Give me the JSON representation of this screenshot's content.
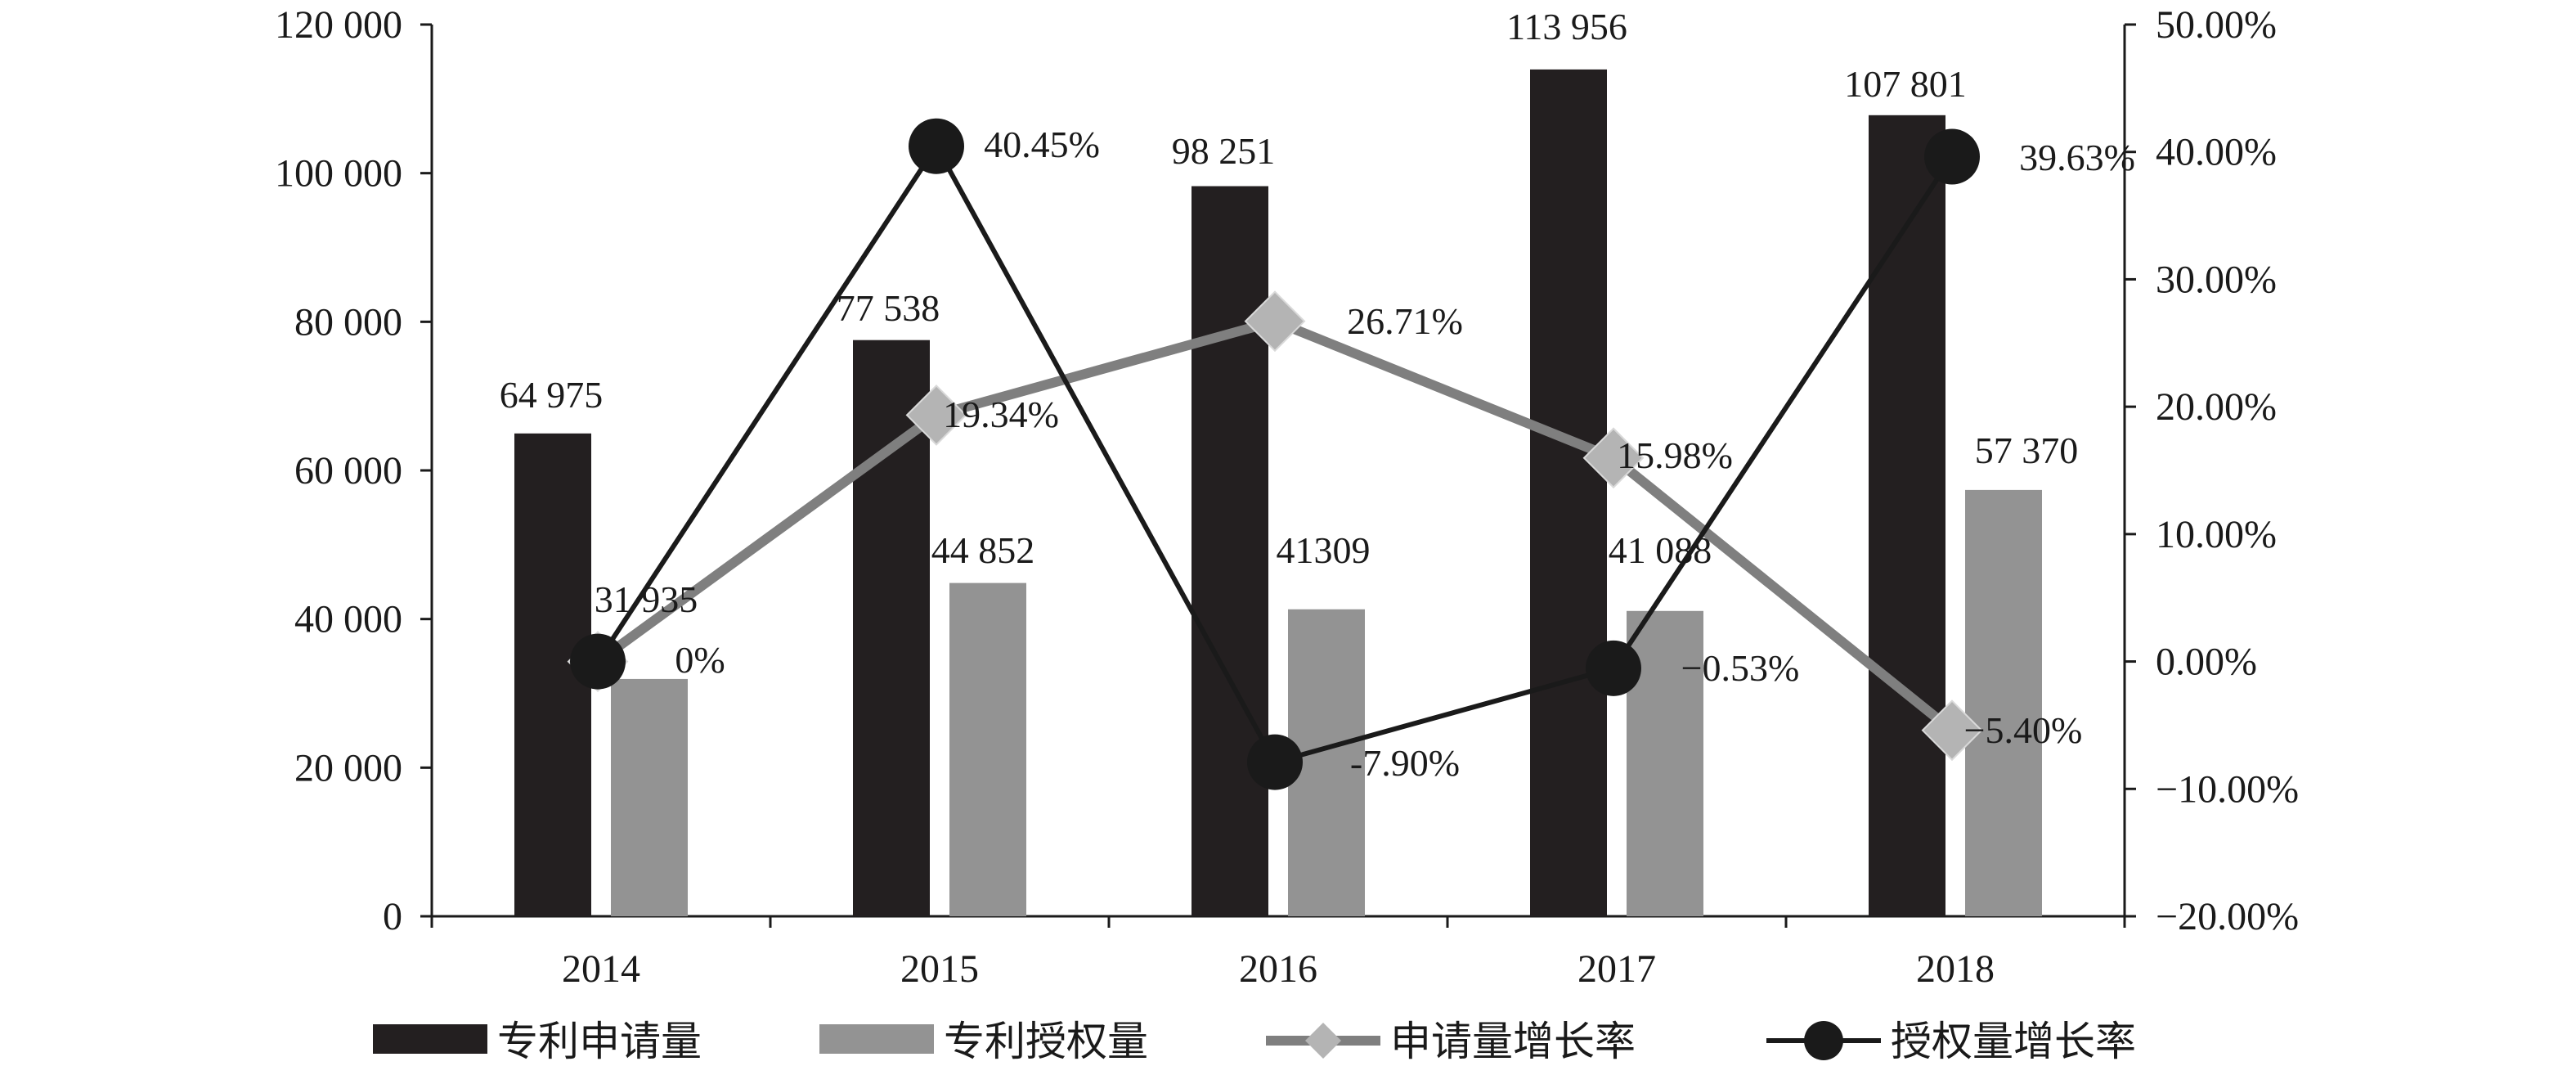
{
  "chart_data": {
    "type": "bar",
    "title": "",
    "categories": [
      "2014",
      "2015",
      "2016",
      "2017",
      "2018"
    ],
    "series": [
      {
        "name": "专利申请量",
        "kind": "bar",
        "axis": "left",
        "color": "#231f20",
        "values": [
          64975,
          77538,
          98251,
          113956,
          107801
        ],
        "labels": [
          "64 975",
          "77 538",
          "98 251",
          "113 956",
          "107 801"
        ]
      },
      {
        "name": "专利授权量",
        "kind": "bar",
        "axis": "left",
        "color": "#939393",
        "values": [
          31935,
          44852,
          41309,
          41088,
          57370
        ],
        "labels": [
          "31 935",
          "44 852",
          "41309",
          "41 088",
          "57 370"
        ]
      },
      {
        "name": "申请量增长率",
        "kind": "line",
        "marker": "diamond",
        "axis": "right",
        "color": "#7f7f7f",
        "marker_color": "#b4b4b4",
        "values": [
          0,
          19.34,
          26.71,
          15.98,
          -5.4
        ],
        "labels": [
          "0%",
          "19.34%",
          "26.71%",
          "15.98%",
          "−5.40%"
        ]
      },
      {
        "name": "授权量增长率",
        "kind": "line",
        "marker": "circle",
        "axis": "right",
        "color": "#1a1a1a",
        "values": [
          0,
          40.45,
          -7.9,
          -0.53,
          39.63
        ],
        "labels": [
          "",
          "40.45%",
          "-7.90%",
          "−0.53%",
          "39.63%"
        ]
      }
    ],
    "y_left": {
      "min": 0,
      "max": 120000,
      "step": 20000,
      "ticks": [
        "0",
        "20 000",
        "40 000",
        "60 000",
        "80 000",
        "100 000",
        "120 000"
      ]
    },
    "y_right": {
      "min": -20,
      "max": 50,
      "step": 10,
      "ticks": [
        "−20.00%",
        "−10.00%",
        "0.00%",
        "10.00%",
        "20.00%",
        "30.00%",
        "40.00%",
        "50.00%"
      ]
    },
    "grid": false,
    "legend_position": "bottom"
  }
}
